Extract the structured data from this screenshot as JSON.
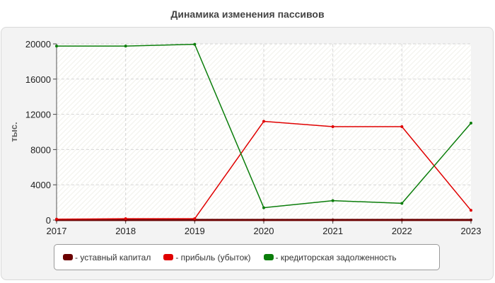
{
  "chart_data": {
    "type": "line",
    "title": "Динамика изменения пассивов",
    "ylabel": "тыс.",
    "xlabel": "",
    "x": [
      "2017",
      "2018",
      "2019",
      "2020",
      "2021",
      "2022",
      "2023"
    ],
    "yticks": [
      "0",
      "4000",
      "8000",
      "12000",
      "16000",
      "20000"
    ],
    "ylim": [
      0,
      20000
    ],
    "grid": true,
    "legend_position": "bottom",
    "series": [
      {
        "name": "- уставный капитал",
        "color": "#6b0000",
        "values": [
          10,
          10,
          10,
          10,
          10,
          10,
          10
        ]
      },
      {
        "name": "- прибыль (убыток)",
        "color": "#e00000",
        "values": [
          100,
          150,
          150,
          11200,
          10600,
          10600,
          1100
        ]
      },
      {
        "name": "- кредиторская задолженность",
        "color": "#0a7d0a",
        "values": [
          19750,
          19750,
          19950,
          1400,
          2200,
          1900,
          11000
        ]
      }
    ]
  }
}
